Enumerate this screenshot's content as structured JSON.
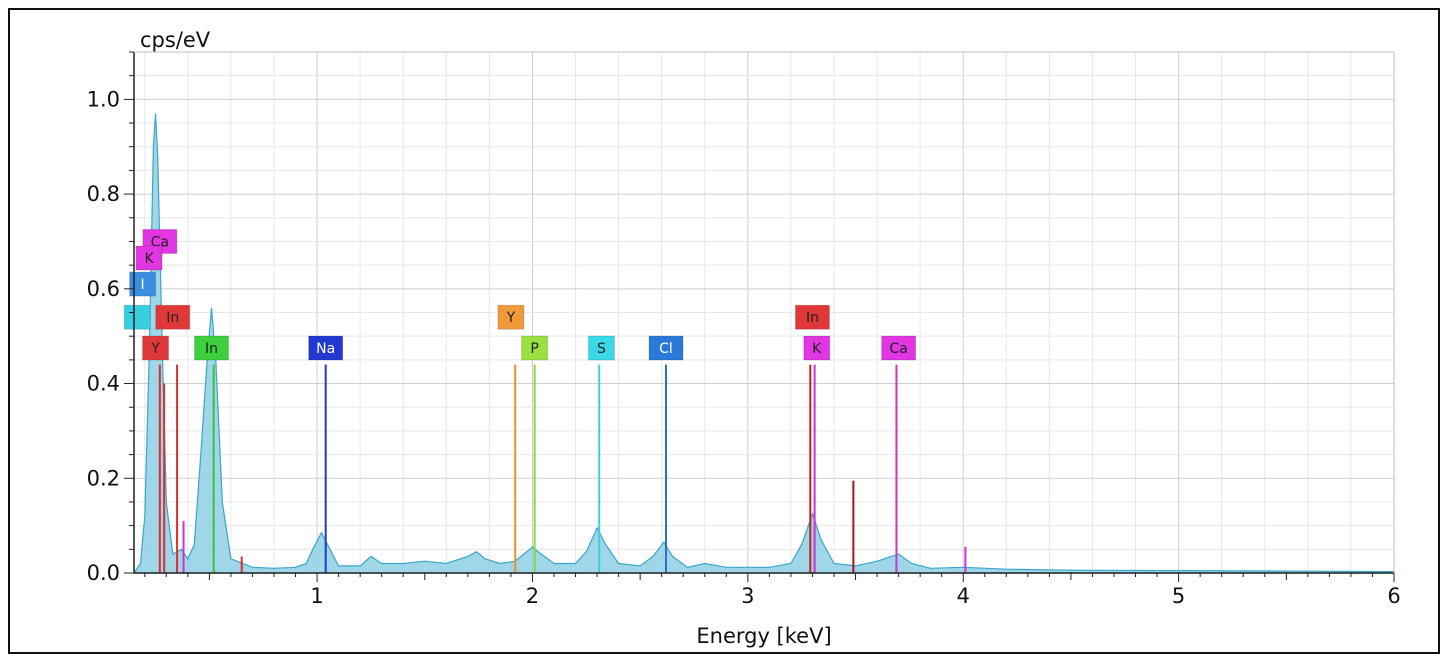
{
  "chart_data": {
    "type": "line",
    "title": "",
    "xlabel": "Energy [keV]",
    "ylabel": "cps/eV",
    "xlim": [
      0.15,
      6.0
    ],
    "ylim": [
      0.0,
      1.1
    ],
    "x_ticks": [
      1,
      2,
      3,
      4,
      5,
      6
    ],
    "y_ticks": [
      0.0,
      0.2,
      0.4,
      0.6,
      0.8,
      1.0
    ],
    "x_tick_labels": [
      "1",
      "2",
      "3",
      "4",
      "5",
      "6"
    ],
    "y_tick_labels": [
      "0.0",
      "0.2",
      "0.4",
      "0.6",
      "0.8",
      "1.0"
    ],
    "grid": true,
    "legend": "none",
    "spectrum": {
      "fill_color": "#8fd0e4",
      "line_color": "#3aa6c8",
      "points": [
        [
          0.15,
          0.0
        ],
        [
          0.18,
          0.02
        ],
        [
          0.2,
          0.12
        ],
        [
          0.22,
          0.45
        ],
        [
          0.24,
          0.9
        ],
        [
          0.25,
          0.97
        ],
        [
          0.26,
          0.88
        ],
        [
          0.28,
          0.5
        ],
        [
          0.3,
          0.15
        ],
        [
          0.33,
          0.04
        ],
        [
          0.37,
          0.05
        ],
        [
          0.4,
          0.03
        ],
        [
          0.43,
          0.06
        ],
        [
          0.46,
          0.25
        ],
        [
          0.49,
          0.45
        ],
        [
          0.51,
          0.56
        ],
        [
          0.53,
          0.45
        ],
        [
          0.56,
          0.15
        ],
        [
          0.6,
          0.03
        ],
        [
          0.7,
          0.012
        ],
        [
          0.8,
          0.01
        ],
        [
          0.9,
          0.012
        ],
        [
          0.95,
          0.02
        ],
        [
          0.98,
          0.05
        ],
        [
          1.02,
          0.085
        ],
        [
          1.06,
          0.05
        ],
        [
          1.1,
          0.015
        ],
        [
          1.2,
          0.015
        ],
        [
          1.25,
          0.035
        ],
        [
          1.3,
          0.02
        ],
        [
          1.4,
          0.02
        ],
        [
          1.5,
          0.025
        ],
        [
          1.6,
          0.02
        ],
        [
          1.7,
          0.035
        ],
        [
          1.74,
          0.045
        ],
        [
          1.78,
          0.03
        ],
        [
          1.85,
          0.02
        ],
        [
          1.92,
          0.025
        ],
        [
          1.96,
          0.04
        ],
        [
          2.0,
          0.055
        ],
        [
          2.04,
          0.04
        ],
        [
          2.1,
          0.02
        ],
        [
          2.2,
          0.02
        ],
        [
          2.25,
          0.045
        ],
        [
          2.3,
          0.095
        ],
        [
          2.34,
          0.06
        ],
        [
          2.4,
          0.02
        ],
        [
          2.5,
          0.015
        ],
        [
          2.56,
          0.035
        ],
        [
          2.61,
          0.065
        ],
        [
          2.65,
          0.035
        ],
        [
          2.72,
          0.012
        ],
        [
          2.8,
          0.02
        ],
        [
          2.9,
          0.012
        ],
        [
          3.1,
          0.012
        ],
        [
          3.2,
          0.02
        ],
        [
          3.25,
          0.06
        ],
        [
          3.3,
          0.125
        ],
        [
          3.34,
          0.07
        ],
        [
          3.4,
          0.02
        ],
        [
          3.5,
          0.015
        ],
        [
          3.6,
          0.025
        ],
        [
          3.7,
          0.04
        ],
        [
          3.76,
          0.02
        ],
        [
          3.85,
          0.01
        ],
        [
          4.0,
          0.012
        ],
        [
          4.2,
          0.008
        ],
        [
          4.5,
          0.006
        ],
        [
          5.0,
          0.005
        ],
        [
          5.5,
          0.004
        ],
        [
          6.0,
          0.003
        ]
      ]
    },
    "element_lines": [
      {
        "label": "Y",
        "energy": 0.27,
        "height": 0.44,
        "color": "#d83030"
      },
      {
        "label": "In",
        "energy": 0.35,
        "height": 0.44,
        "color": "#d83030"
      },
      {
        "label": "",
        "energy": 0.29,
        "height": 0.4,
        "color": "#d83030"
      },
      {
        "label": "In",
        "energy": 0.52,
        "height": 0.44,
        "color": "#3cc23c"
      },
      {
        "label": "Na",
        "energy": 1.04,
        "height": 0.44,
        "color": "#2238c8"
      },
      {
        "label": "Y",
        "energy": 1.92,
        "height": 0.44,
        "color": "#e8902a"
      },
      {
        "label": "P",
        "energy": 2.01,
        "height": 0.44,
        "color": "#8ed43a"
      },
      {
        "label": "S",
        "energy": 2.31,
        "height": 0.44,
        "color": "#38d0e0"
      },
      {
        "label": "Cl",
        "energy": 2.62,
        "height": 0.44,
        "color": "#2a70cc"
      },
      {
        "label": "In",
        "energy": 3.29,
        "height": 0.44,
        "color": "#c02020"
      },
      {
        "label": "K",
        "energy": 3.31,
        "height": 0.44,
        "color": "#d030d0"
      },
      {
        "label": "Ca",
        "energy": 3.69,
        "height": 0.44,
        "color": "#d030d0"
      },
      {
        "label": "",
        "energy": 3.49,
        "height": 0.195,
        "color": "#a01818"
      },
      {
        "label": "",
        "energy": 4.01,
        "height": 0.055,
        "color": "#d030d0"
      },
      {
        "label": "",
        "energy": 0.65,
        "height": 0.035,
        "color": "#d83030"
      },
      {
        "label": "",
        "energy": 0.38,
        "height": 0.11,
        "color": "#d030d0"
      }
    ],
    "labels": [
      {
        "text": "Ca",
        "energy": 0.27,
        "y": 0.7,
        "color": "#e236e2",
        "text_color": "#222"
      },
      {
        "text": "K",
        "energy": 0.22,
        "y": 0.665,
        "color": "#e236e2",
        "text_color": "#222"
      },
      {
        "text": "I",
        "energy": 0.19,
        "y": 0.61,
        "color": "#3a8ee0",
        "text_color": "#fff"
      },
      {
        "text": "In",
        "energy": 0.33,
        "y": 0.54,
        "color": "#e03838",
        "text_color": "#222"
      },
      {
        "text": "",
        "energy": 0.165,
        "y": 0.54,
        "color": "#38d0e0",
        "text_color": "#222"
      },
      {
        "text": "Y",
        "energy": 0.25,
        "y": 0.475,
        "color": "#e03838",
        "text_color": "#222"
      },
      {
        "text": "In",
        "energy": 0.51,
        "y": 0.475,
        "color": "#3cd03c",
        "text_color": "#222"
      },
      {
        "text": "Na",
        "energy": 1.04,
        "y": 0.475,
        "color": "#2238d0",
        "text_color": "#fff"
      },
      {
        "text": "Y",
        "energy": 1.9,
        "y": 0.54,
        "color": "#f09a3a",
        "text_color": "#222"
      },
      {
        "text": "P",
        "energy": 2.01,
        "y": 0.475,
        "color": "#9ae040",
        "text_color": "#222"
      },
      {
        "text": "S",
        "energy": 2.32,
        "y": 0.475,
        "color": "#3ad8e8",
        "text_color": "#222"
      },
      {
        "text": "Cl",
        "energy": 2.62,
        "y": 0.475,
        "color": "#2a78d8",
        "text_color": "#fff"
      },
      {
        "text": "In",
        "energy": 3.3,
        "y": 0.54,
        "color": "#e03838",
        "text_color": "#222"
      },
      {
        "text": "K",
        "energy": 3.32,
        "y": 0.475,
        "color": "#e236e2",
        "text_color": "#222"
      },
      {
        "text": "Ca",
        "energy": 3.7,
        "y": 0.475,
        "color": "#e236e2",
        "text_color": "#222"
      }
    ]
  }
}
